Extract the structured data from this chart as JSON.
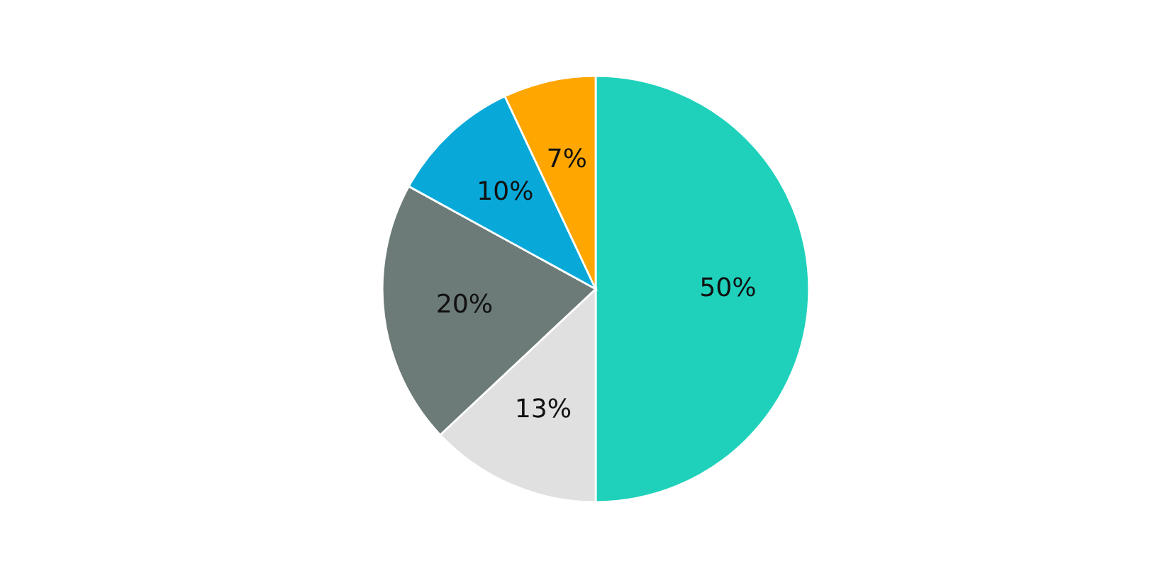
{
  "chart_data": {
    "type": "pie",
    "categories": [
      null,
      null,
      null,
      null,
      null
    ],
    "values": [
      50,
      13,
      20,
      10,
      7
    ],
    "colors": [
      "#1fd1bb",
      "#e0e0e0",
      "#6c7b78",
      "#08a9d9",
      "#ffa600"
    ],
    "value_labels": [
      "50%",
      "13%",
      "20%",
      "10%",
      "7%"
    ]
  }
}
